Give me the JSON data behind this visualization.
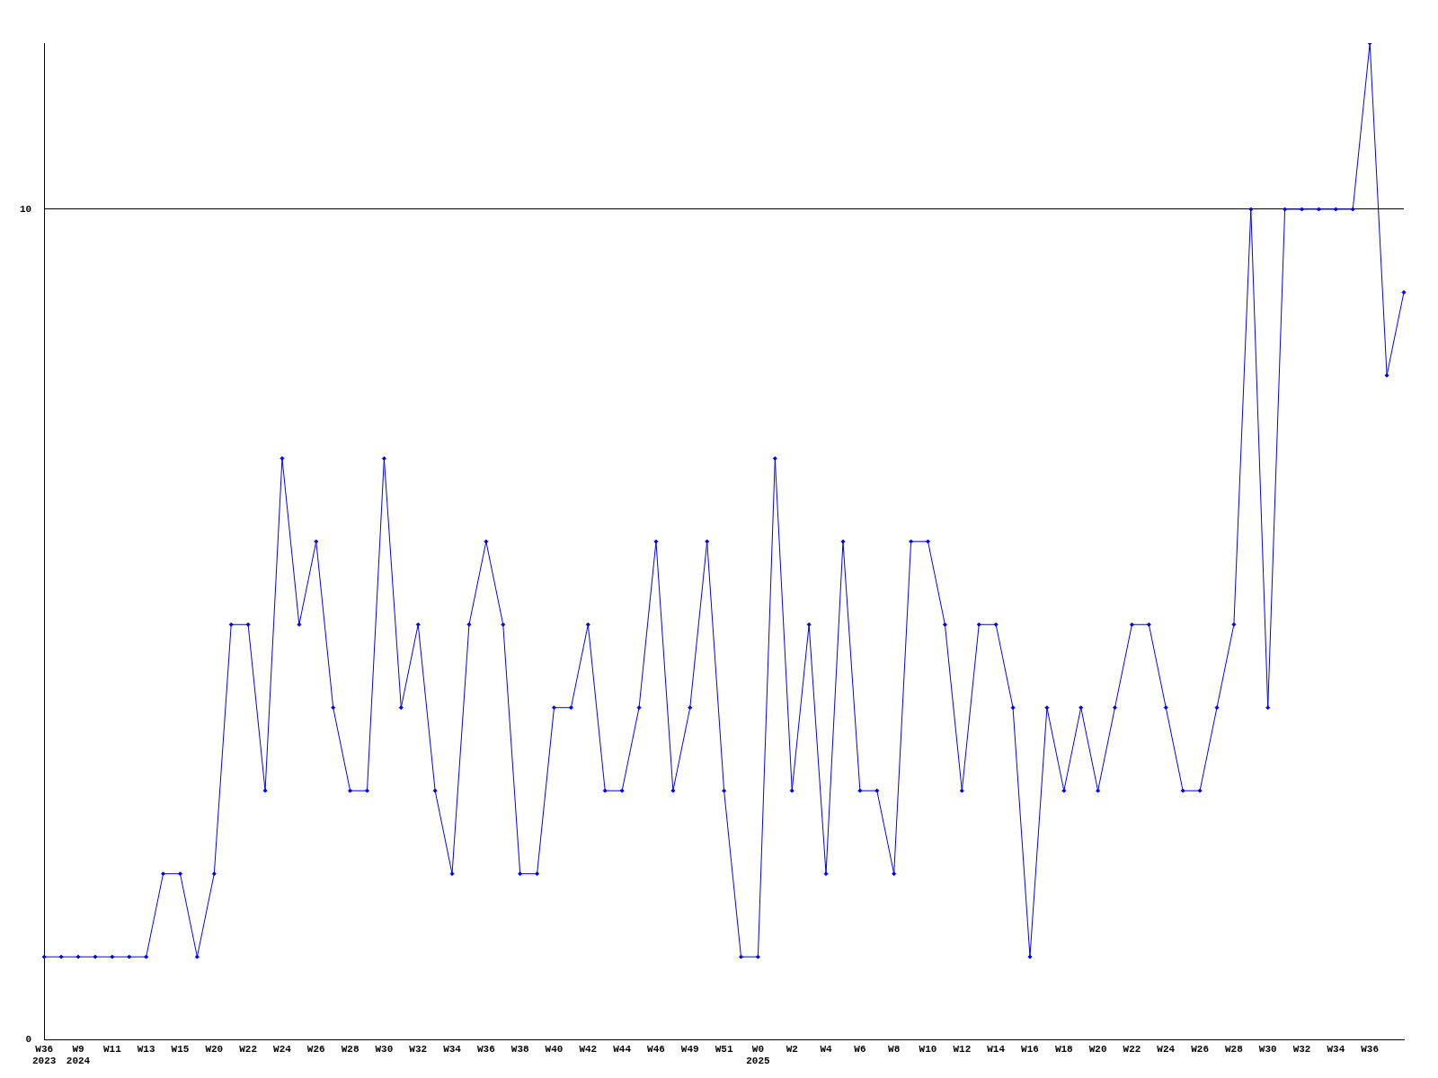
{
  "chart_data": {
    "type": "line",
    "categories": [
      "W36\n2023",
      null,
      "W9\n2024",
      null,
      "W11",
      null,
      "W13",
      null,
      "W15",
      null,
      "W20",
      null,
      "W22",
      null,
      "W24",
      null,
      "W26",
      null,
      "W28",
      null,
      "W30",
      null,
      "W32",
      null,
      "W34",
      null,
      "W36",
      null,
      "W38",
      null,
      "W40",
      null,
      "W42",
      null,
      "W44",
      null,
      "W46",
      null,
      "W49",
      null,
      "W51",
      null,
      "W0\n2025",
      null,
      "W2",
      null,
      "W4",
      null,
      "W6",
      null,
      "W8",
      null,
      "W10",
      null,
      "W12",
      null,
      "W14",
      null,
      "W16",
      null,
      "W18",
      null,
      "W20",
      null,
      "W22",
      null,
      "W24",
      null,
      "W26",
      null,
      "W28",
      null,
      "W30",
      null,
      "W32",
      null,
      "W34",
      null,
      "W36",
      null,
      null
    ],
    "series": [
      {
        "color": "#0000ff",
        "values": [
          1,
          1,
          1,
          1,
          1,
          1,
          1,
          2,
          2,
          1,
          2,
          5,
          5,
          3,
          7,
          5,
          6,
          4,
          3,
          3,
          7,
          4,
          5,
          3,
          2,
          5,
          6,
          5,
          2,
          2,
          4,
          4,
          5,
          3,
          3,
          4,
          6,
          3,
          4,
          6,
          3,
          1,
          1,
          7,
          3,
          5,
          2,
          6,
          3,
          3,
          2,
          6,
          6,
          5,
          3,
          5,
          5,
          4,
          1,
          4,
          3,
          4,
          3,
          4,
          5,
          5,
          4,
          3,
          3,
          4,
          5,
          10,
          4,
          10,
          10,
          10,
          10,
          10,
          12,
          8,
          9
        ]
      }
    ],
    "ylim": [
      0,
      12
    ],
    "yticks": [
      0,
      10
    ],
    "grid": "y",
    "legend": false,
    "marker": "diamond",
    "line_style": "solid"
  }
}
